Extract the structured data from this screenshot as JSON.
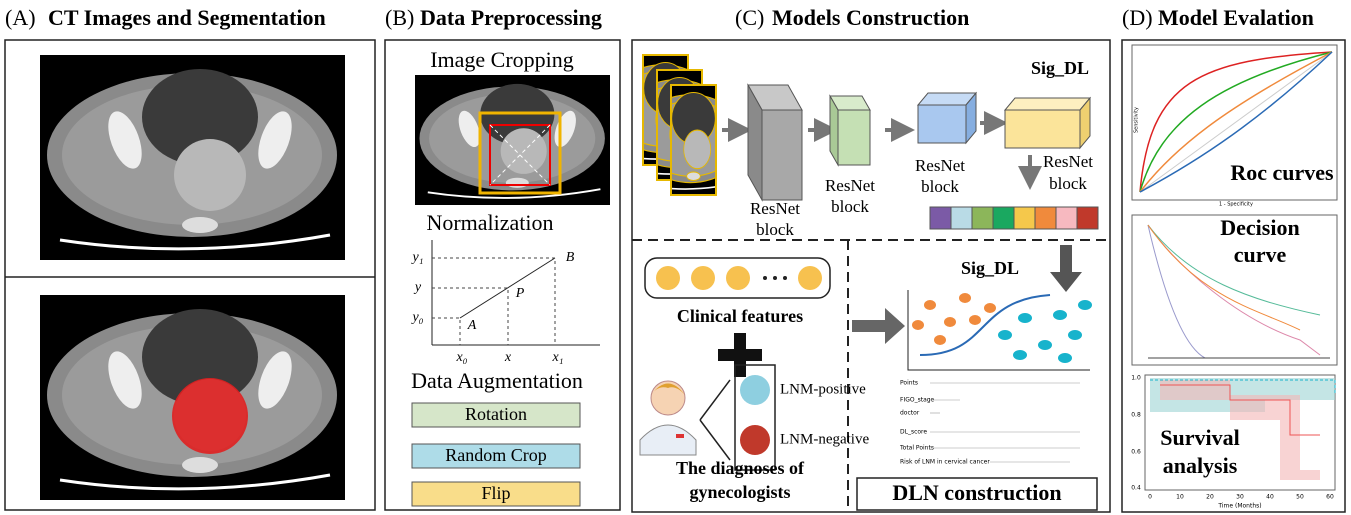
{
  "panels": {
    "a": {
      "label": "(A)",
      "title": "CT Images and Segmentation"
    },
    "b": {
      "label": "(B)",
      "title": "Data Preprocessing",
      "cropping": "Image Cropping",
      "normalization": "Normalization",
      "graph": {
        "y1": "y₁",
        "y": "y",
        "y0": "y₀",
        "x0": "x₀",
        "x": "x",
        "x1": "x₁",
        "A": "A",
        "P": "P",
        "B": "B"
      },
      "augmentation": "Data Augmentation",
      "ops": [
        "Rotation",
        "Random Crop",
        "Flip"
      ]
    },
    "c": {
      "label": "(C)",
      "title": "Models Construction",
      "top_model": "Sig_DL",
      "blocks": [
        [
          "ResNet",
          "block"
        ],
        [
          "ResNet",
          "block"
        ],
        [
          "ResNet",
          "block"
        ],
        [
          "ResNet",
          "block"
        ]
      ],
      "clinical": "Clinical features",
      "positive": "LNM-positive",
      "negative": "LNM-negative",
      "diagnoses": [
        "The diagnoses of",
        "gynecologists"
      ],
      "fusion_model": "Sig_DL",
      "nomogram": [
        "Points",
        "FIGO_stage",
        "doctor",
        "DL_score",
        "Total Points",
        "Risk of LNM in cervical cancer"
      ],
      "result": "DLN construction"
    },
    "d": {
      "label": "(D)",
      "title": "Model Evalation",
      "roc": "Roc curves",
      "roc_y": "Sensitivity",
      "roc_x": "1 - Specificity",
      "decision": [
        "Decision",
        "curve"
      ],
      "survival": [
        "Survival",
        "analysis"
      ],
      "time": "Time (Months)",
      "surv_y": [
        "1.0",
        "0.8",
        "0.6",
        "0.4"
      ],
      "surv_x": [
        "0",
        "10",
        "20",
        "30",
        "40",
        "50",
        "60"
      ]
    }
  }
}
